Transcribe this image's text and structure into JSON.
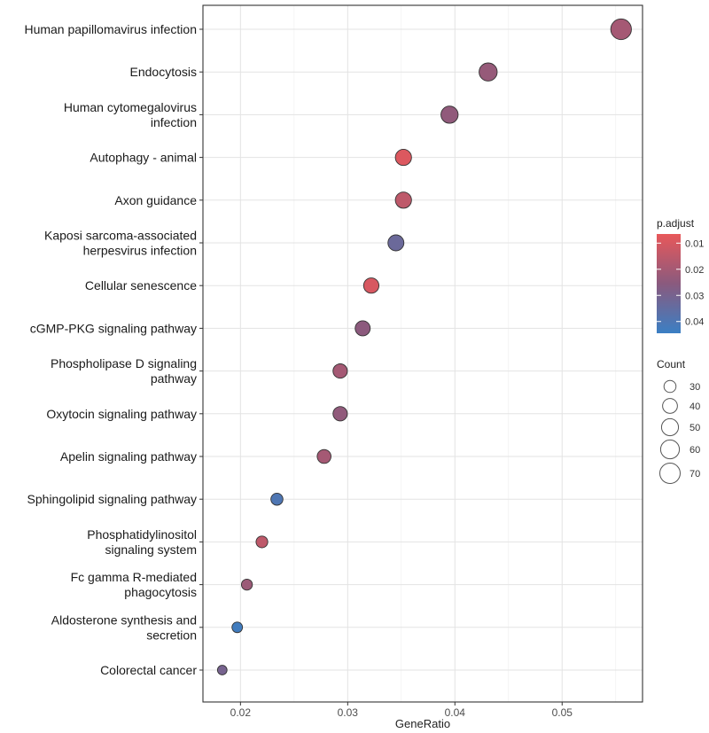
{
  "chart_data": {
    "type": "scatter",
    "xlabel": "GeneRatio",
    "xlim": [
      0.0165,
      0.0575
    ],
    "xticks": [
      0.02,
      0.03,
      0.04,
      0.05
    ],
    "xtick_labels": [
      "0.02",
      "0.03",
      "0.04",
      "0.05"
    ],
    "categories": [
      {
        "label": [
          "Human papillomavirus infection"
        ],
        "gene_ratio": 0.0555,
        "count": 72,
        "p_adjust": 0.02
      },
      {
        "label": [
          "Endocytosis"
        ],
        "gene_ratio": 0.0431,
        "count": 56,
        "p_adjust": 0.023
      },
      {
        "label": [
          "Human cytomegalovirus",
          "infection"
        ],
        "gene_ratio": 0.0395,
        "count": 51,
        "p_adjust": 0.024
      },
      {
        "label": [
          "Autophagy - animal"
        ],
        "gene_ratio": 0.0352,
        "count": 46,
        "p_adjust": 0.009
      },
      {
        "label": [
          "Axon guidance"
        ],
        "gene_ratio": 0.0352,
        "count": 46,
        "p_adjust": 0.015
      },
      {
        "label": [
          "Kaposi sarcoma-associated",
          "herpesvirus infection"
        ],
        "gene_ratio": 0.0345,
        "count": 45,
        "p_adjust": 0.033
      },
      {
        "label": [
          "Cellular senescence"
        ],
        "gene_ratio": 0.0322,
        "count": 42,
        "p_adjust": 0.01
      },
      {
        "label": [
          "cGMP-PKG signaling pathway"
        ],
        "gene_ratio": 0.0314,
        "count": 41,
        "p_adjust": 0.025
      },
      {
        "label": [
          "Phospholipase D signaling",
          "pathway"
        ],
        "gene_ratio": 0.0293,
        "count": 38,
        "p_adjust": 0.02
      },
      {
        "label": [
          "Oxytocin signaling pathway"
        ],
        "gene_ratio": 0.0293,
        "count": 38,
        "p_adjust": 0.024
      },
      {
        "label": [
          "Apelin signaling pathway"
        ],
        "gene_ratio": 0.0278,
        "count": 36,
        "p_adjust": 0.02
      },
      {
        "label": [
          "Sphingolipid signaling pathway"
        ],
        "gene_ratio": 0.0234,
        "count": 30,
        "p_adjust": 0.04
      },
      {
        "label": [
          "Phosphatidylinositol",
          "signaling system"
        ],
        "gene_ratio": 0.022,
        "count": 29,
        "p_adjust": 0.015
      },
      {
        "label": [
          "Fc gamma R-mediated",
          "phagocytosis"
        ],
        "gene_ratio": 0.0206,
        "count": 27,
        "p_adjust": 0.022
      },
      {
        "label": [
          "Aldosterone synthesis and",
          "secretion"
        ],
        "gene_ratio": 0.0197,
        "count": 26,
        "p_adjust": 0.043
      },
      {
        "label": [
          "Colorectal cancer"
        ],
        "gene_ratio": 0.0183,
        "count": 24,
        "p_adjust": 0.03
      }
    ],
    "color_legend": {
      "title": "p.adjust",
      "ticks": [
        0.01,
        0.02,
        0.03,
        0.04
      ],
      "tick_labels": [
        "0.01",
        "0.02",
        "0.03",
        "0.04"
      ],
      "range": [
        0.0065,
        0.0445
      ],
      "low_color": "#e8585a",
      "mid_color": "#8a5a7e",
      "high_color": "#3b7fc4"
    },
    "size_legend": {
      "title": "Count",
      "values": [
        30,
        40,
        50,
        60,
        70
      ],
      "labels": [
        "30",
        "40",
        "50",
        "60",
        "70"
      ]
    },
    "grid": true
  }
}
